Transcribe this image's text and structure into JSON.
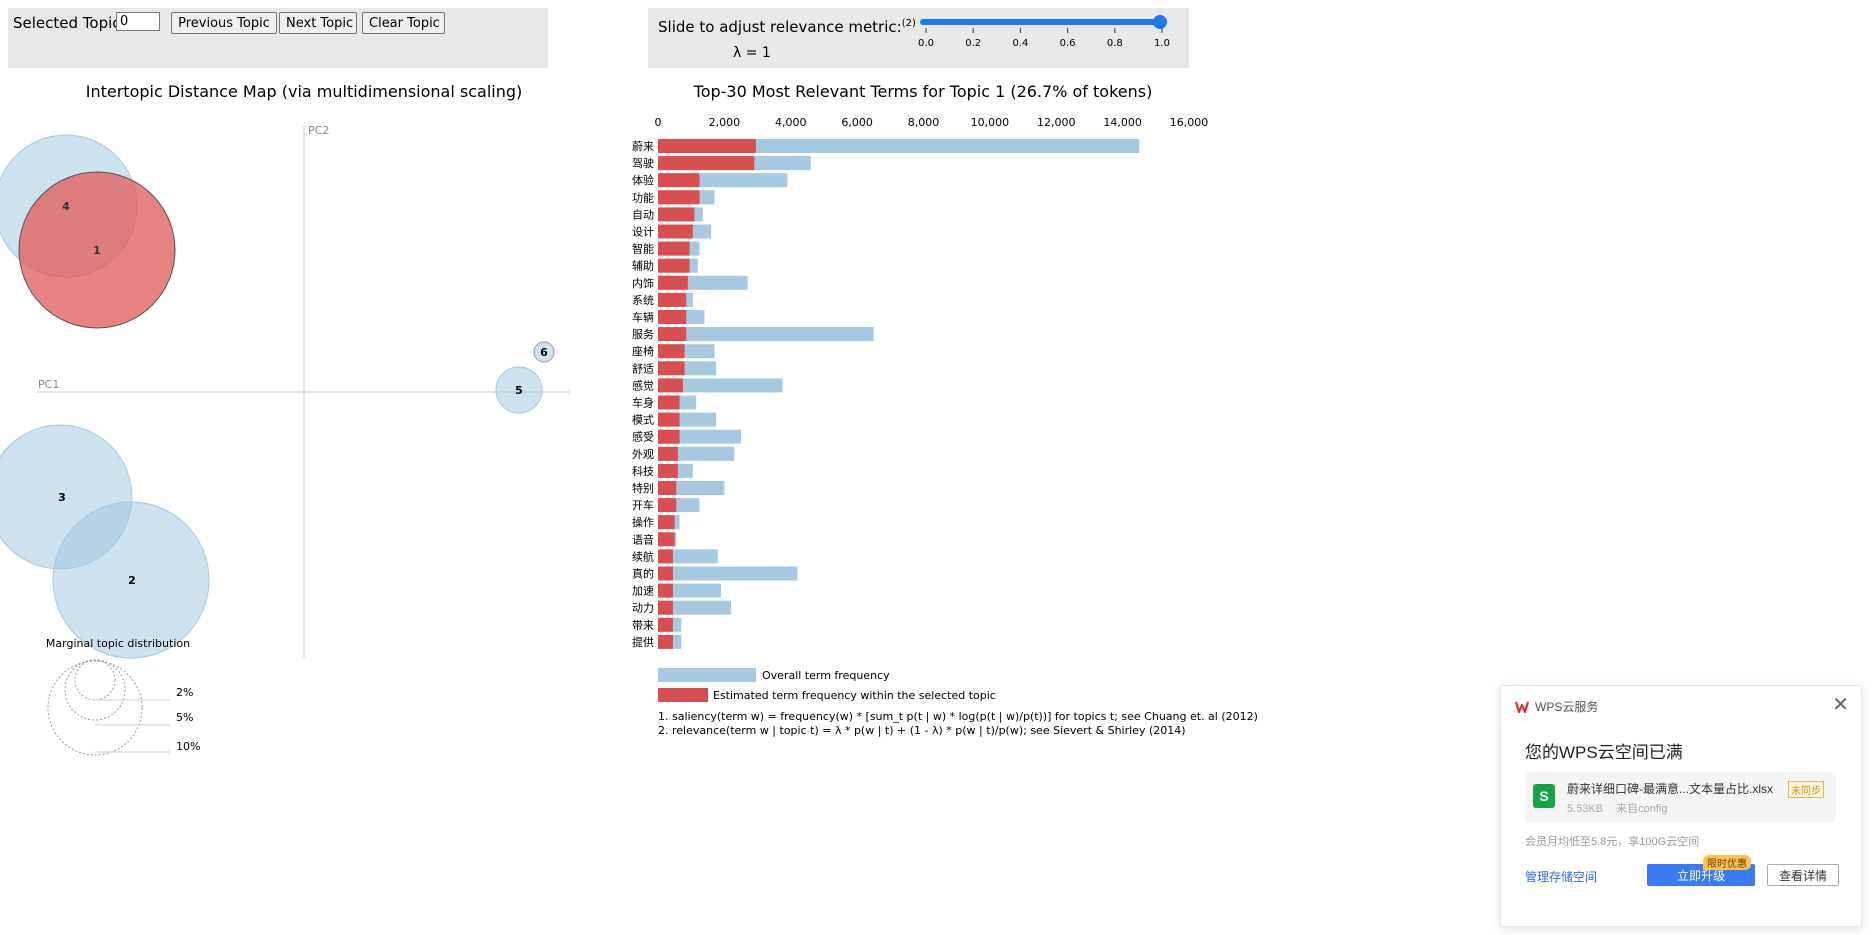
{
  "controls": {
    "selected_topic_label": "Selected Topic:",
    "selected_topic_value": "0",
    "prev_label": "Previous Topic",
    "next_label": "Next Topic",
    "clear_label": "Clear Topic",
    "slider_label": "Slide to adjust relevance metric:",
    "slider_footnote": "(2)",
    "lambda_text": "λ = 1",
    "slider_value": 1.0,
    "slider_ticks": [
      "0.0",
      "0.2",
      "0.4",
      "0.6",
      "0.8",
      "1.0"
    ],
    "accent_color": "#1f78f0"
  },
  "left_panel": {
    "title": "Intertopic Distance Map (via multidimensional scaling)",
    "pc1_label": "PC1",
    "pc2_label": "PC2",
    "marginal_title": "Marginal topic distribution",
    "legend_labels": [
      "2%",
      "5%",
      "10%"
    ],
    "topic_labels": [
      "1",
      "2",
      "3",
      "4",
      "5",
      "6"
    ],
    "bubble_color": "#a6c8e0",
    "selected_color": "#e05a5a"
  },
  "chart_data": {
    "type": "bar",
    "title": "Top-30 Most Relevant Terms for Topic 1 (26.7% of tokens)",
    "x_ticks": [
      "0",
      "2,000",
      "4,000",
      "6,000",
      "8,000",
      "10,000",
      "12,000",
      "14,000",
      "16,000"
    ],
    "xlim": [
      0,
      16000
    ],
    "categories": [
      "蔚来",
      "驾驶",
      "体验",
      "功能",
      "自动",
      "设计",
      "智能",
      "辅助",
      "内饰",
      "系统",
      "车辆",
      "服务",
      "座椅",
      "舒适",
      "感觉",
      "车身",
      "模式",
      "感受",
      "外观",
      "科技",
      "特别",
      "开车",
      "操作",
      "语音",
      "续航",
      "真的",
      "加速",
      "动力",
      "带来",
      "提供"
    ],
    "series": [
      {
        "name": "Overall term frequency",
        "color": "#a6c8e0",
        "values": [
          14500,
          4600,
          3900,
          1700,
          1350,
          1600,
          1250,
          1200,
          2700,
          1050,
          1400,
          6500,
          1700,
          1750,
          3750,
          1150,
          1750,
          2500,
          2300,
          1050,
          2000,
          1250,
          650,
          550,
          1800,
          4200,
          1900,
          2200,
          700,
          700
        ]
      },
      {
        "name": "Estimated term frequency within the selected topic",
        "color": "#d94f4f",
        "values": [
          2950,
          2900,
          1250,
          1250,
          1100,
          1050,
          950,
          950,
          900,
          850,
          850,
          850,
          800,
          800,
          750,
          650,
          650,
          650,
          600,
          600,
          550,
          550,
          500,
          500,
          450,
          450,
          450,
          450,
          450,
          450
        ]
      }
    ],
    "footnotes": [
      "1. saliency(term w) = frequency(w) * [sum_t p(t | w) * log(p(t | w)/p(t))] for topics t; see Chuang et. al (2012)",
      "2. relevance(term w | topic t) = λ * p(w | t) + (1 - λ) * p(w | t)/p(w); see Sievert & Shirley (2014)"
    ]
  },
  "wps_popup": {
    "app_name": "WPS云服务",
    "heading": "您的WPS云空间已满",
    "file_name": "蔚来详细口碑-最满意...文本量占比.xlsx",
    "file_badge": "未同步",
    "file_size": "5.53KB",
    "file_source": "来自config",
    "file_icon_letter": "S",
    "promo": "会员月均低至5.8元，享100G云空间",
    "manage_link": "管理存储空间",
    "upgrade_label": "立即升级",
    "upgrade_tag": "限时优惠",
    "details_label": "查看详情",
    "close_glyph": "✕"
  }
}
